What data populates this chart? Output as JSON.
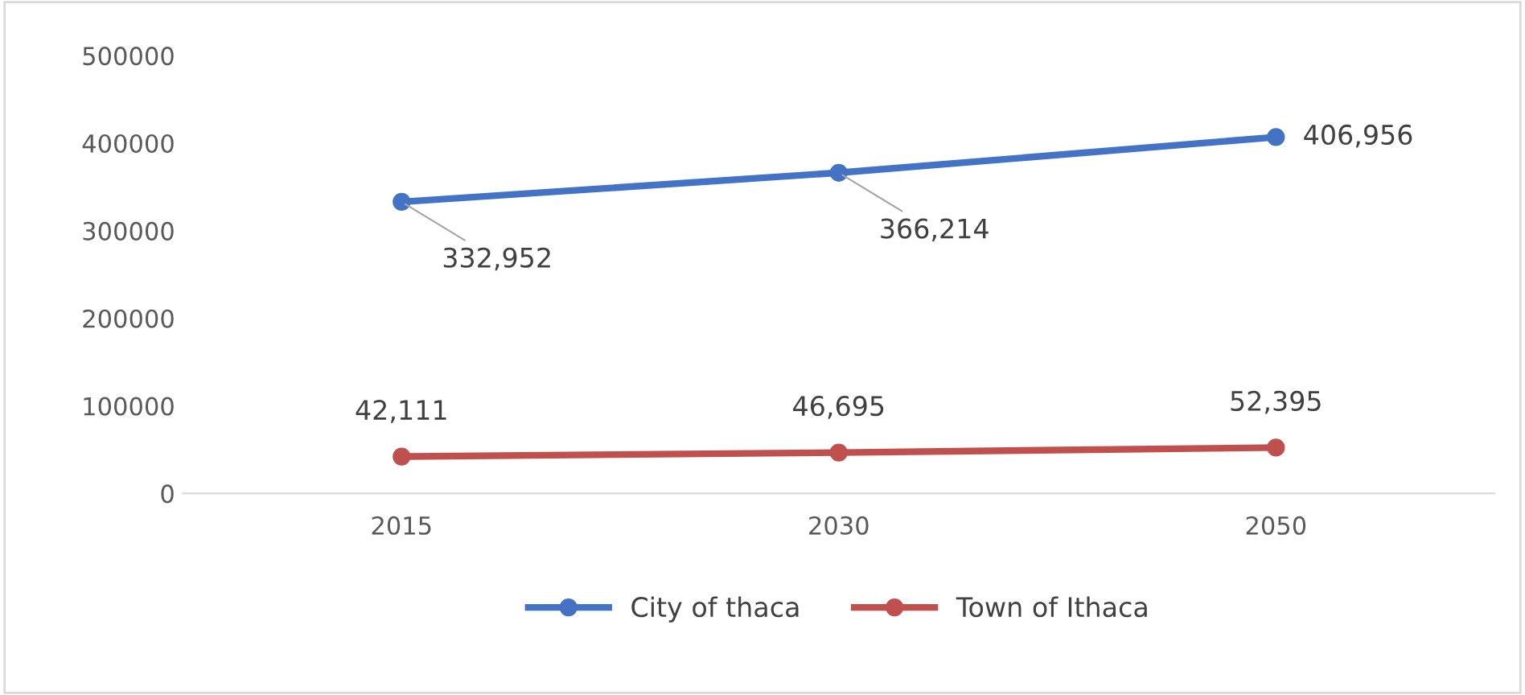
{
  "chart_data": {
    "type": "line",
    "categories": [
      "2015",
      "2030",
      "2050"
    ],
    "series": [
      {
        "name": "City of thaca",
        "color": "#4472c4",
        "values": [
          332952,
          366214,
          406956
        ],
        "value_labels": [
          "332,952",
          "366,214",
          "406,956"
        ]
      },
      {
        "name": "Town of Ithaca",
        "color": "#c0504d",
        "values": [
          42111,
          46695,
          52395
        ],
        "value_labels": [
          "42,111",
          "46,695",
          "52,395"
        ]
      }
    ],
    "ylim": [
      0,
      500000
    ],
    "yticks": [
      0,
      100000,
      200000,
      300000,
      400000,
      500000
    ],
    "grid": false,
    "legend": "bottom",
    "marker": "circle",
    "line_style": "solid"
  }
}
